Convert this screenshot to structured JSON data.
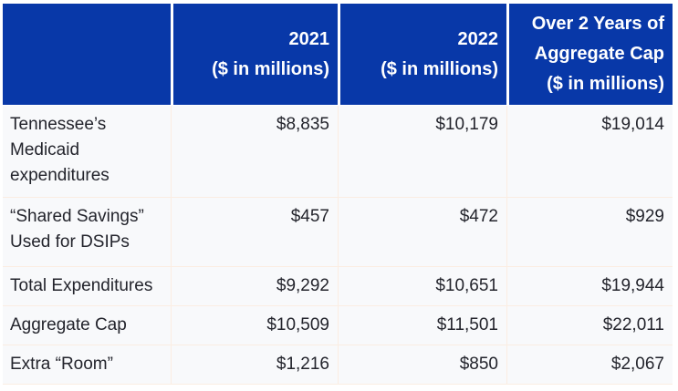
{
  "colors": {
    "header_bg": "#0838A8",
    "header_text": "#FFFFFF",
    "body_bg": "#F8F9FB",
    "body_text": "#23242C",
    "divider": "#FBEDE2",
    "page_bg": "#FFFFFF"
  },
  "table": {
    "header": {
      "col1": "",
      "col2": "2021\n($ in millions)",
      "col3": "2022\n($ in millions)",
      "col4": "Over 2 Years of\nAggregate Cap\n($ in millions)"
    },
    "rows": [
      {
        "label": "Tennessee’s Medicaid expenditures",
        "y2021": "$8,835",
        "y2022": "$10,179",
        "total": "$19,014"
      },
      {
        "label": "“Shared Savings” Used for DSIPs",
        "y2021": "$457",
        "y2022": "$472",
        "total": "$929"
      },
      {
        "label": "Total Expenditures",
        "y2021": "$9,292",
        "y2022": "$10,651",
        "total": "$19,944"
      },
      {
        "label": "Aggregate Cap",
        "y2021": "$10,509",
        "y2022": "$11,501",
        "total": "$22,011"
      },
      {
        "label": "Extra “Room”",
        "y2021": "$1,216",
        "y2022": "$850",
        "total": "$2,067"
      }
    ]
  },
  "chart_data": {
    "type": "table",
    "columns": [
      "",
      "2021 ($ in millions)",
      "2022 ($ in millions)",
      "Over 2 Years of Aggregate Cap ($ in millions)"
    ],
    "rows": [
      [
        "Tennessee’s Medicaid expenditures",
        8835,
        10179,
        19014
      ],
      [
        "“Shared Savings” Used for DSIPs",
        457,
        472,
        929
      ],
      [
        "Total Expenditures",
        9292,
        10651,
        19944
      ],
      [
        "Aggregate Cap",
        10509,
        11501,
        22011
      ],
      [
        "Extra “Room”",
        1216,
        850,
        2067
      ]
    ]
  }
}
